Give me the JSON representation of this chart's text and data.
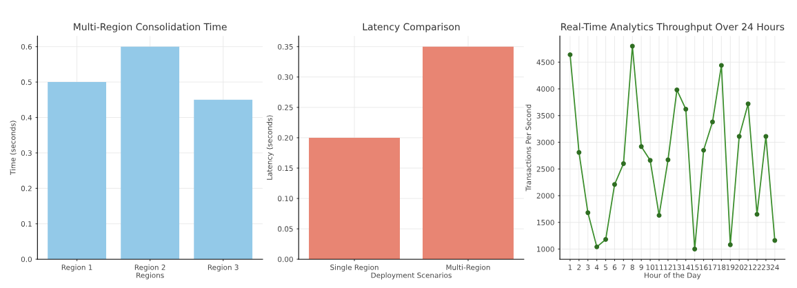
{
  "chart_data": [
    {
      "type": "bar",
      "title": "Multi-Region Consolidation Time",
      "xlabel": "Regions",
      "ylabel": "Time (seconds)",
      "categories": [
        "Region 1",
        "Region 2",
        "Region 3"
      ],
      "values": [
        0.5,
        0.6,
        0.45
      ],
      "color": "#93c9e8",
      "ylim": [
        0,
        0.63
      ],
      "yticks": [
        {
          "value": 0,
          "label": "0.0"
        },
        0.1,
        0.2,
        0.3,
        0.4,
        0.5,
        0.6
      ],
      "grid": true
    },
    {
      "type": "bar",
      "title": "Latency Comparison",
      "xlabel": "Deployment Scenarios",
      "ylabel": "Latency (seconds)",
      "categories": [
        "Single Region",
        "Multi-Region"
      ],
      "values": [
        0.2,
        0.35
      ],
      "color": "#e88573",
      "ylim": [
        0,
        0.3675
      ],
      "yticks": [
        {
          "value": 0,
          "label": "0.00"
        },
        {
          "value": 0.05,
          "label": "0.05"
        },
        {
          "value": 0.1,
          "label": "0.10"
        },
        {
          "value": 0.15,
          "label": "0.15"
        },
        {
          "value": 0.2,
          "label": "0.20"
        },
        {
          "value": 0.25,
          "label": "0.25"
        },
        {
          "value": 0.3,
          "label": "0.30"
        },
        {
          "value": 0.35,
          "label": "0.35"
        }
      ],
      "grid": true
    },
    {
      "type": "line",
      "title": "Real-Time Analytics Throughput Over 24 Hours",
      "xlabel": "Hour of the Day",
      "ylabel": "Transactions Per Second",
      "x": [
        1,
        2,
        3,
        4,
        5,
        6,
        7,
        8,
        9,
        10,
        11,
        12,
        13,
        14,
        15,
        16,
        17,
        18,
        19,
        20,
        21,
        22,
        23,
        24
      ],
      "values": [
        4640,
        2810,
        1680,
        1040,
        1180,
        2210,
        2600,
        4800,
        2920,
        2660,
        1630,
        2670,
        3980,
        3620,
        1000,
        2850,
        3380,
        4440,
        1080,
        3110,
        3720,
        1650,
        3110,
        1160
      ],
      "color": "#3d8f2e",
      "marker": "circle",
      "xlim": [
        -0.15,
        25.15
      ],
      "xticks": [
        1,
        2,
        3,
        4,
        5,
        6,
        7,
        8,
        9,
        10,
        11,
        12,
        13,
        14,
        15,
        16,
        17,
        18,
        19,
        20,
        21,
        22,
        23,
        24
      ],
      "ylim": [
        810,
        4990
      ],
      "yticks": [
        1000,
        1500,
        2000,
        2500,
        3000,
        3500,
        4000,
        4500
      ],
      "grid": true
    }
  ]
}
